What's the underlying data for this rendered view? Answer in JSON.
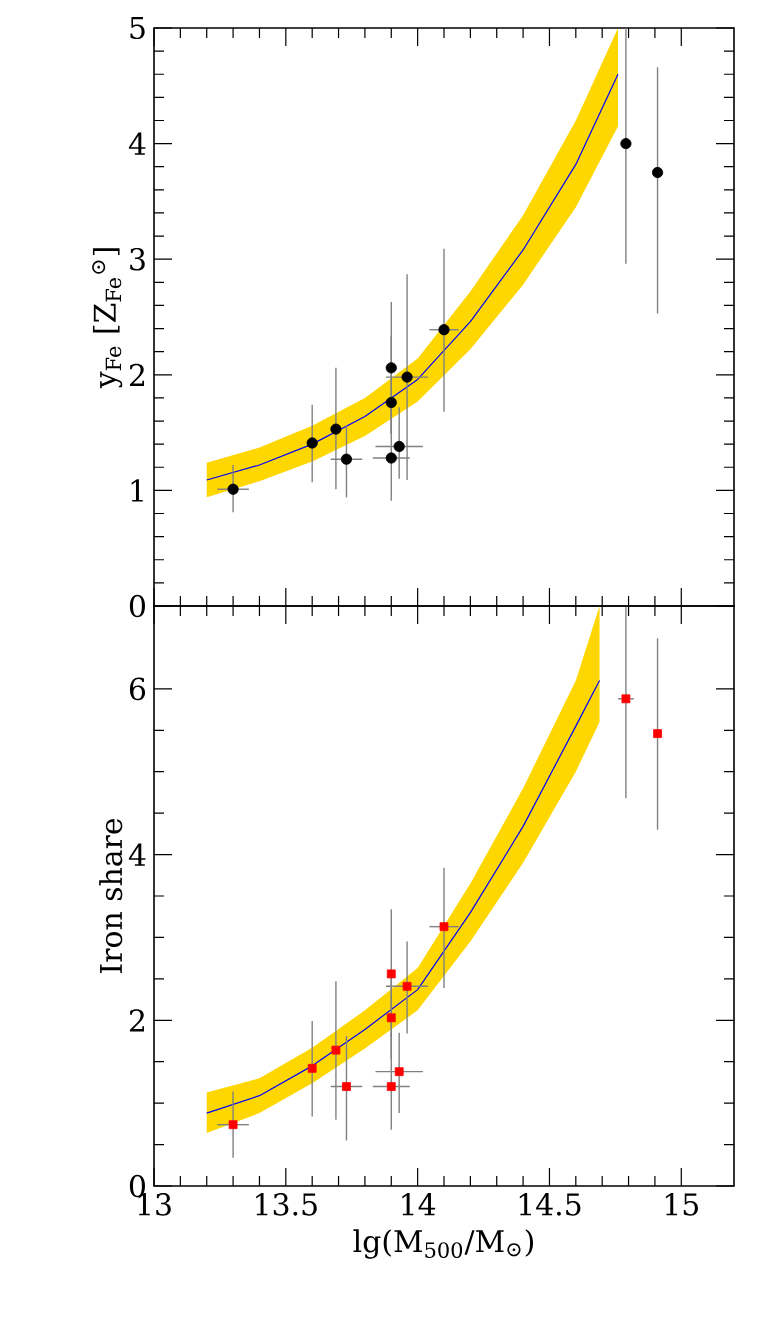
{
  "chart_data": [
    {
      "type": "scatter",
      "ylabel": "y$_{Fe}$ [Z$_{Fe}$$^{⊙}$]",
      "xlim": [
        13,
        15.2
      ],
      "xticks": [
        13,
        13.5,
        14,
        14.5,
        15
      ],
      "ylim": [
        0,
        5
      ],
      "yticks": [
        0,
        1,
        2,
        3,
        4,
        5
      ],
      "tick_labels": "y",
      "series": [
        {
          "type": "line",
          "color": "#0000ff",
          "x": [
            13.2,
            13.4,
            13.6,
            13.8,
            14.0,
            14.2,
            14.4,
            14.6,
            14.76
          ],
          "values": [
            1.09,
            1.22,
            1.4,
            1.64,
            1.96,
            2.46,
            3.08,
            3.82,
            4.6
          ],
          "lower": [
            0.94,
            1.08,
            1.25,
            1.47,
            1.77,
            2.22,
            2.78,
            3.45,
            4.15
          ],
          "upper": [
            1.24,
            1.37,
            1.56,
            1.8,
            2.14,
            2.72,
            3.38,
            4.2,
            5.0
          ]
        },
        {
          "color": "#000000",
          "marker": "circle",
          "x": [
            13.3,
            13.6,
            13.69,
            13.73,
            13.9,
            13.9,
            13.9,
            13.93,
            13.96,
            14.1,
            14.79,
            14.91
          ],
          "values": [
            1.01,
            1.41,
            1.53,
            1.27,
            2.06,
            1.76,
            1.28,
            1.38,
            1.98,
            2.39,
            4.0,
            3.75
          ],
          "errors": [
            [
              0.81,
              1.22
            ],
            [
              1.07,
              1.74
            ],
            [
              1.01,
              2.06
            ],
            [
              0.94,
              1.56
            ],
            [
              1.49,
              2.63
            ],
            [
              1.49,
              2.34
            ],
            [
              0.91,
              1.72
            ],
            [
              1.1,
              1.72
            ],
            [
              1.09,
              2.87
            ],
            [
              1.68,
              3.09
            ],
            [
              2.96,
              5.0
            ],
            [
              2.53,
              4.66
            ]
          ],
          "xerrors": [
            0.06,
            null,
            null,
            0.06,
            null,
            null,
            0.07,
            0.09,
            0.08,
            0.055,
            null,
            null
          ]
        }
      ]
    },
    {
      "type": "scatter",
      "ylabel": "Iron share",
      "xlabel": "lg(M$_{500}$/M$_{⊙}$)",
      "xlim": [
        13,
        15.2
      ],
      "xticks": [
        13,
        13.5,
        14,
        14.5,
        15
      ],
      "ylim": [
        0,
        7
      ],
      "yticks": [
        0,
        2,
        4,
        6
      ],
      "series": [
        {
          "type": "line",
          "color": "#0000ff",
          "x": [
            13.2,
            13.4,
            13.6,
            13.8,
            14.0,
            14.2,
            14.4,
            14.6,
            14.69
          ],
          "values": [
            0.88,
            1.09,
            1.45,
            1.89,
            2.37,
            3.3,
            4.34,
            5.55,
            6.1
          ],
          "lower": [
            0.64,
            0.88,
            1.24,
            1.66,
            2.12,
            2.95,
            3.9,
            5.0,
            5.6
          ],
          "upper": [
            1.13,
            1.3,
            1.67,
            2.12,
            2.63,
            3.65,
            4.8,
            6.1,
            7.0
          ]
        },
        {
          "color": "#ff0000",
          "marker": "square",
          "x": [
            13.3,
            13.6,
            13.69,
            13.73,
            13.9,
            13.9,
            13.9,
            13.93,
            13.96,
            14.1,
            14.79,
            14.91
          ],
          "values": [
            0.74,
            1.42,
            1.64,
            1.2,
            2.56,
            2.03,
            1.2,
            1.38,
            2.41,
            3.13,
            5.88,
            5.46
          ],
          "errors": [
            [
              0.34,
              1.14
            ],
            [
              0.84,
              1.99
            ],
            [
              0.8,
              2.47
            ],
            [
              0.55,
              1.81
            ],
            [
              1.8,
              3.34
            ],
            [
              1.53,
              2.57
            ],
            [
              0.68,
              1.85
            ],
            [
              0.88,
              1.85
            ],
            [
              1.84,
              2.95
            ],
            [
              2.39,
              3.84
            ],
            [
              4.68,
              6.99
            ],
            [
              4.3,
              6.61
            ]
          ],
          "xerrors": [
            0.06,
            null,
            null,
            0.06,
            null,
            null,
            0.07,
            0.09,
            0.08,
            0.055,
            0.03,
            null
          ]
        }
      ]
    }
  ]
}
